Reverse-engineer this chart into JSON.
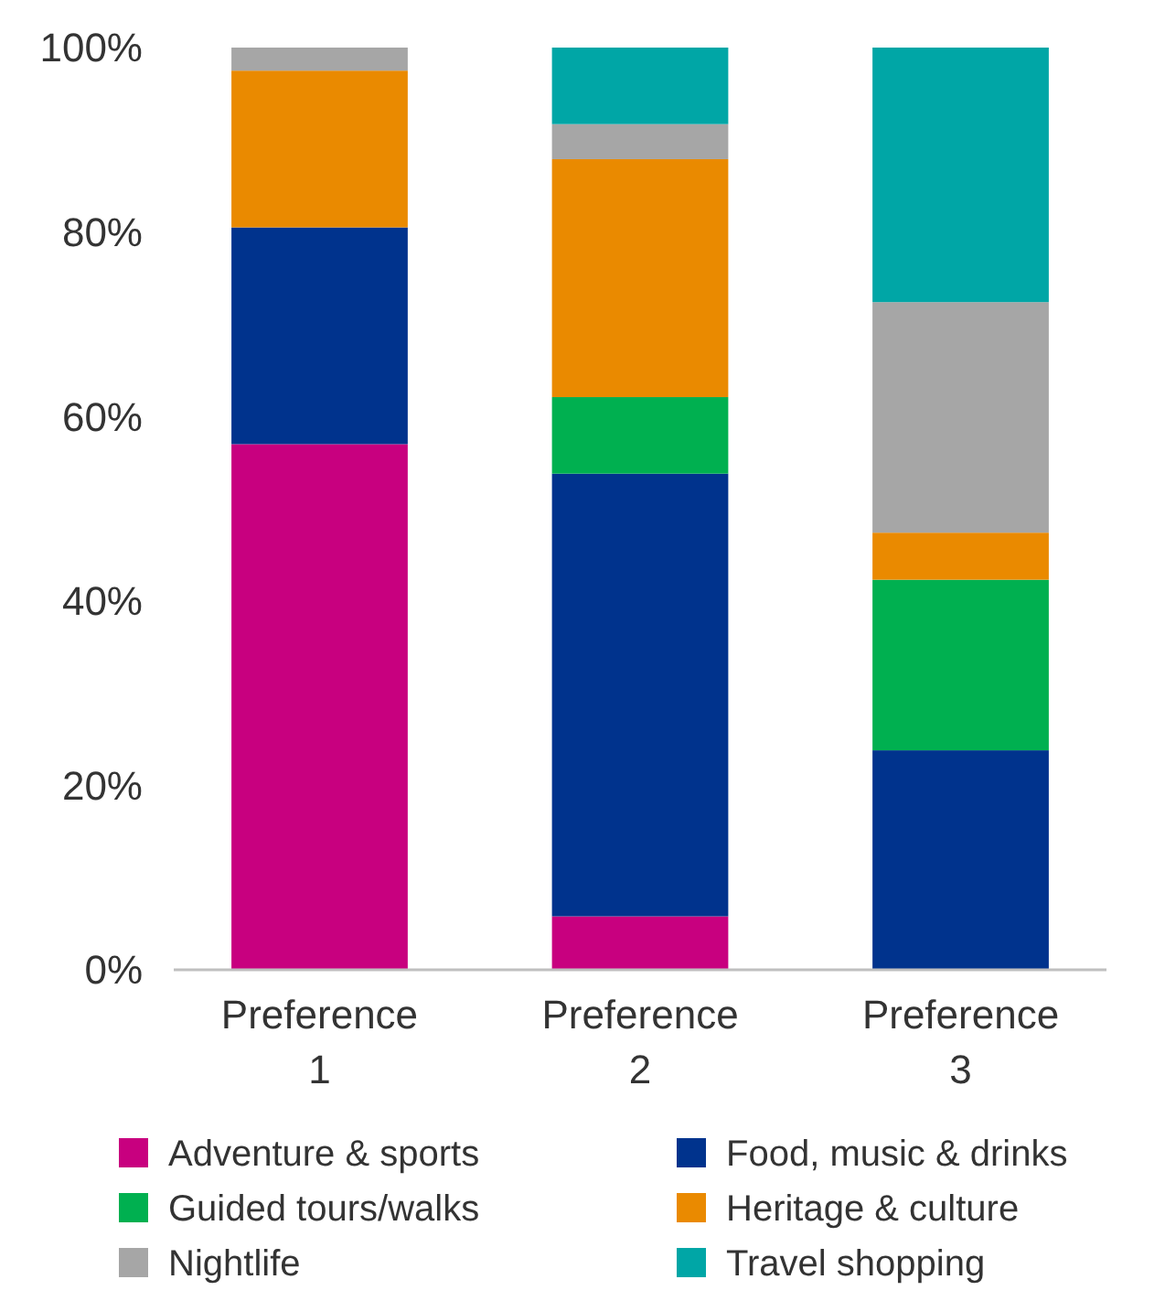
{
  "chart_data": {
    "type": "bar",
    "stacked": true,
    "categories": [
      "Preference 1",
      "Preference 2",
      "Preference 3"
    ],
    "series": [
      {
        "name": "Adventure & sports",
        "color": "#c8007f",
        "values": [
          57,
          5.8,
          0
        ]
      },
      {
        "name": "Food, music & drinks",
        "color": "#00338d",
        "values": [
          23.5,
          48,
          23.8
        ]
      },
      {
        "name": "Guided tours/walks",
        "color": "#00b050",
        "values": [
          0,
          8.3,
          18.5
        ]
      },
      {
        "name": "Heritage & culture",
        "color": "#ea8a00",
        "values": [
          17,
          25.8,
          5.1
        ]
      },
      {
        "name": "Nightlife",
        "color": "#a6a6a6",
        "values": [
          2.5,
          3.8,
          25
        ]
      },
      {
        "name": "Travel shopping",
        "color": "#00a6a6",
        "values": [
          0,
          8.3,
          27.6
        ]
      }
    ],
    "ylim": [
      0,
      100
    ],
    "yticks": [
      {
        "value": 0,
        "label": "0%"
      },
      {
        "value": 20,
        "label": "20%"
      },
      {
        "value": 40,
        "label": "40%"
      },
      {
        "value": 60,
        "label": "60%"
      },
      {
        "value": 80,
        "label": "80%"
      },
      {
        "value": 100,
        "label": "100%"
      }
    ],
    "grid": false,
    "legend": "bottom"
  }
}
